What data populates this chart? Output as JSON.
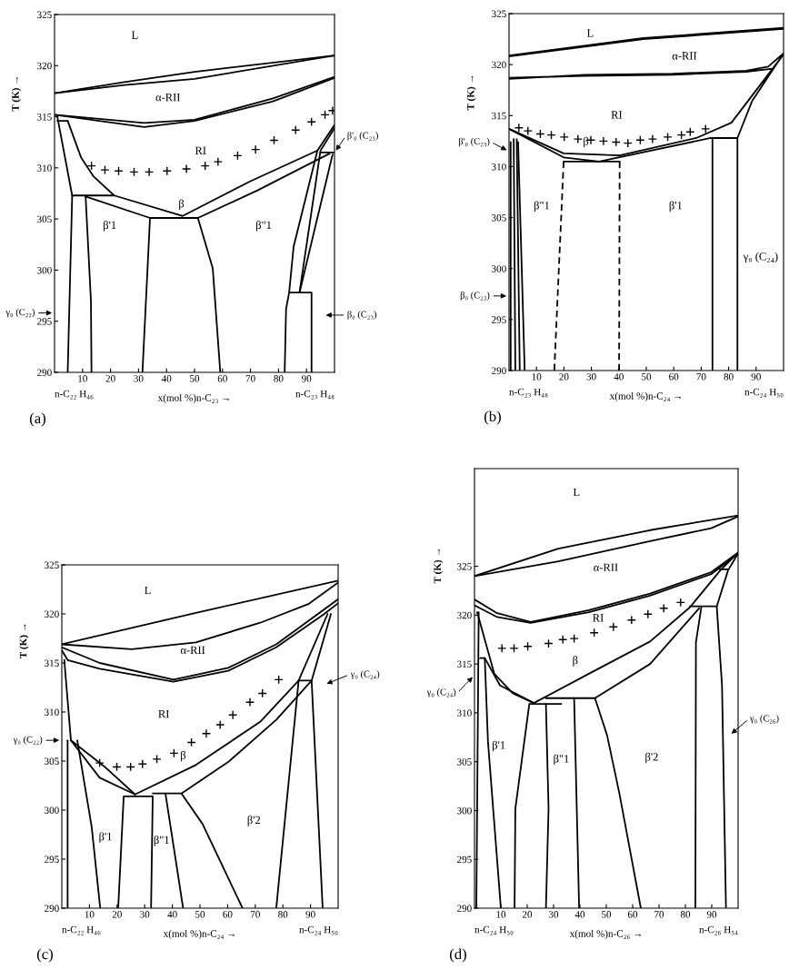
{
  "chart_data": [
    {
      "type": "line",
      "xlabel": "x(mol %)n-C₂₃ →",
      "ylabel": "T (K) →",
      "xlim": [
        0,
        100
      ],
      "xticks": [
        10,
        20,
        30,
        40,
        50,
        60,
        70,
        80,
        90
      ],
      "ylim": [
        290,
        325
      ],
      "yticks": [
        290,
        295,
        300,
        305,
        310,
        315,
        320,
        325
      ],
      "annotations": [
        "n-C₂₂ H₄₆",
        "n-C₂₃ H₄₈",
        "(a)",
        "L",
        "α-RII",
        "RI",
        "β",
        "β'1",
        "β\"1",
        "γ₀ (C₂₂)",
        "β'₀ (C₂₃)",
        "β₀ (C₂₃)"
      ],
      "series": [
        {
          "color": "#000000",
          "x": [
            0,
            25,
            50,
            100
          ],
          "values": [
            317.3,
            318.4,
            319.4,
            321.0
          ]
        },
        {
          "color": "#000000",
          "x": [
            0,
            25,
            50,
            100
          ],
          "values": [
            317.3,
            318.1,
            318.7,
            321.0
          ]
        },
        {
          "color": "#000000",
          "x": [
            0,
            32,
            50,
            78,
            100
          ],
          "values": [
            315.2,
            314.4,
            314.7,
            316.8,
            318.9
          ]
        },
        {
          "color": "#000000",
          "x": [
            0,
            32,
            50,
            78,
            100
          ],
          "values": [
            315.2,
            314.0,
            314.6,
            316.5,
            318.8
          ]
        },
        {
          "color": "#000000",
          "x": [
            1.0,
            6.3,
            4.7
          ],
          "values": [
            315.0,
            307.3,
            290
          ]
        },
        {
          "color": "#000000",
          "x": [
            1.0,
            4.7
          ],
          "values": [
            314.6,
            314.6
          ]
        },
        {
          "color": "#000000",
          "x": [
            4.7,
            9.5,
            13.8,
            21.3,
            45.8,
            70,
            93.9
          ],
          "values": [
            314.6,
            311.0,
            309.2,
            307.3,
            305.3,
            308.7,
            311.7
          ]
        },
        {
          "color": "#000000",
          "x": [
            6.3,
            21.3
          ],
          "values": [
            307.3,
            307.3
          ]
        },
        {
          "color": "#000000",
          "x": [
            11.1,
            34.1,
            51.2,
            72.5,
            98.2
          ],
          "values": [
            307.2,
            305.1,
            305.1,
            307.8,
            311.4
          ]
        },
        {
          "color": "#000000",
          "x": [
            11.1,
            13.0,
            13.2
          ],
          "values": [
            307.2,
            297,
            290
          ]
        },
        {
          "color": "#000000",
          "x": [
            34.1,
            31.4
          ],
          "values": [
            305.1,
            290
          ]
        },
        {
          "color": "#000000",
          "x": [
            51.2,
            56.5,
            59.2
          ],
          "values": [
            305.1,
            300.2,
            290
          ]
        },
        {
          "color": "#000000",
          "x": [
            82.2,
            82.7,
            83.8,
            91.8,
            91.8
          ],
          "values": [
            290,
            296.2,
            297.8,
            297.8,
            290
          ]
        },
        {
          "color": "#000000",
          "x": [
            83.8,
            85.4,
            93.9,
            100
          ],
          "values": [
            297.8,
            302.3,
            311.7,
            314.2
          ]
        },
        {
          "color": "#000000",
          "x": [
            87.5,
            95.0,
            100
          ],
          "values": [
            297.8,
            311.7,
            313.9
          ]
        },
        {
          "color": "#000000",
          "x": [
            87.5,
            99.3
          ],
          "values": [
            297.8,
            311.3
          ]
        },
        {
          "color": "#000000",
          "x": [
            95.0,
            100
          ],
          "values": [
            311.5,
            311.5
          ]
        },
        {
          "type": "scatter",
          "marker": "cross",
          "color": "#000000",
          "x": [
            13.2,
            18.0,
            22.9,
            28.4,
            33.8,
            40.2,
            47.1,
            53.8,
            58.4,
            65.4,
            71.8,
            78.4,
            86.1,
            91.8,
            96.6,
            99.3
          ],
          "values": [
            310.2,
            309.8,
            309.7,
            309.6,
            309.6,
            309.7,
            309.9,
            310.2,
            310.6,
            311.2,
            311.8,
            312.7,
            313.7,
            314.5,
            315.2,
            315.6
          ]
        }
      ]
    },
    {
      "type": "line",
      "xlabel": "x(mol %)n-C₂₄ →",
      "ylabel": "T (K) →",
      "xlim": [
        0,
        100
      ],
      "xticks": [
        10,
        20,
        30,
        40,
        50,
        60,
        70,
        80,
        90
      ],
      "ylim": [
        290,
        325
      ],
      "yticks": [
        290,
        295,
        300,
        305,
        310,
        315,
        320,
        325
      ],
      "annotations": [
        "n-C₂₃ H₄₈",
        "n-C₂₄ H₅₀",
        "(b)",
        "L",
        "α-RII",
        "RI",
        "β",
        "β\"1",
        "β'1",
        "γ₀ (C₂₄)",
        "β'₀ (C₂₃)",
        "β₀ (C₂₃)"
      ],
      "series": [
        {
          "color": "#000000",
          "x": [
            0,
            48.9,
            100
          ],
          "values": [
            320.9,
            322.6,
            323.6
          ]
        },
        {
          "color": "#000000",
          "x": [
            0,
            48.9,
            100
          ],
          "values": [
            320.8,
            322.5,
            323.5
          ]
        },
        {
          "color": "#000000",
          "x": [
            0,
            19.9,
            40.3,
            68.2,
            81,
            100,
            96,
            86.4,
            59.6,
            27.4,
            0,
            0,
            27.4,
            59.6,
            86.4,
            94.4,
            100,
            88.5,
            83.2,
            83.2
          ],
          "values": [
            313.7,
            311.3,
            311.1,
            312.8,
            314.3,
            321.0,
            319.6,
            319.3,
            319.0,
            318.9,
            318.7,
            318.6,
            319.0,
            319.1,
            319.4,
            319.8,
            321.1,
            316.4,
            312.8,
            290
          ]
        },
        {
          "color": "#000000",
          "x": [
            74.1,
            74.1
          ],
          "values": [
            312.8,
            290
          ]
        },
        {
          "color": "#000000",
          "x": [
            0,
            19.9,
            32.8,
            73.5,
            83.2
          ],
          "values": [
            313.7,
            310.9,
            310.5,
            312.8,
            312.8
          ]
        },
        {
          "color": "#000000",
          "x": [
            19.9,
            40.3
          ],
          "values": [
            310.5,
            310.5
          ]
        },
        {
          "color": "#000000",
          "line_style": "dashed",
          "x": [
            19.9,
            16.5
          ],
          "values": [
            310.5,
            290
          ]
        },
        {
          "color": "#000000",
          "line_style": "dashed",
          "x": [
            40.3,
            40.1
          ],
          "values": [
            310.5,
            290
          ]
        },
        {
          "color": "#000000",
          "x": [
            0.6,
            0.6
          ],
          "values": [
            312.4,
            290
          ]
        },
        {
          "color": "#000000",
          "x": [
            1.7,
            2.3
          ],
          "values": [
            312.7,
            290
          ]
        },
        {
          "color": "#000000",
          "x": [
            2.8,
            3.9
          ],
          "values": [
            312.7,
            290
          ]
        },
        {
          "color": "#000000",
          "x": [
            3.3,
            5.7
          ],
          "values": [
            312.4,
            290
          ]
        },
        {
          "type": "scatter",
          "marker": "cross",
          "color": "#000000",
          "x": [
            3.6,
            6.9,
            11.4,
            15.4,
            20.1,
            25.1,
            29.8,
            34.4,
            39.0,
            43.3,
            47.8,
            52.3,
            57.8,
            62.8,
            66.0,
            71.6
          ],
          "values": [
            313.8,
            313.5,
            313.2,
            313.1,
            312.9,
            312.7,
            312.6,
            312.5,
            312.4,
            312.3,
            312.6,
            312.7,
            312.9,
            313.1,
            313.4,
            313.7
          ]
        }
      ]
    },
    {
      "type": "line",
      "xlabel": "x(mol %)n-C₂₄ →",
      "ylabel": "T (K) →",
      "xlim": [
        0,
        100
      ],
      "xticks": [
        10,
        20,
        30,
        40,
        50,
        60,
        70,
        80,
        90
      ],
      "ylim": [
        290,
        325
      ],
      "yticks": [
        290,
        295,
        300,
        305,
        310,
        315,
        320,
        325
      ],
      "annotations": [
        "n-C₂₂ H₄₆",
        "n-C₂₄ H₅₀",
        "(c)",
        "L",
        "α-RII",
        "RI",
        "β",
        "β'1",
        "β\"1",
        "β'2",
        "γ₀ (C₂₂)",
        "γ₀ (C₂₄)"
      ],
      "series": [
        {
          "color": "#000000",
          "x": [
            0,
            48.5,
            100
          ],
          "values": [
            316.9,
            320.1,
            323.4
          ]
        },
        {
          "color": "#000000",
          "x": [
            0,
            25.3,
            48.5,
            71.8,
            89.2,
            100
          ],
          "values": [
            316.9,
            316.4,
            317.1,
            319.1,
            321.0,
            323.2
          ]
        },
        {
          "color": "#000000",
          "x": [
            0,
            13.7,
            40.4,
            60.2,
            77.6,
            100
          ],
          "values": [
            316.6,
            315.0,
            313.3,
            314.5,
            316.9,
            321.5
          ]
        },
        {
          "color": "#000000",
          "x": [
            0,
            2.1,
            13.7,
            40.4,
            60.2,
            77.6,
            95,
            100
          ],
          "values": [
            316.3,
            315.3,
            314.4,
            313.1,
            314.2,
            316.6,
            320.0,
            321.1
          ]
        },
        {
          "color": "#000000",
          "x": [
            0.9,
            3.3
          ],
          "values": [
            315.3,
            307.1
          ]
        },
        {
          "color": "#000000",
          "x": [
            2.1,
            2.1
          ],
          "values": [
            307.1,
            290
          ]
        },
        {
          "color": "#000000",
          "x": [
            3.3,
            13.7,
            26.5
          ],
          "values": [
            307.1,
            303.3,
            301.6
          ]
        },
        {
          "color": "#000000",
          "x": [
            3.3,
            16.0,
            26.5
          ],
          "values": [
            307.1,
            304.3,
            301.6
          ]
        },
        {
          "color": "#000000",
          "x": [
            26.5,
            48.5,
            71.8,
            85.7,
            96.2
          ],
          "values": [
            301.6,
            304.6,
            309.0,
            313.2,
            320.0
          ]
        },
        {
          "color": "#000000",
          "x": [
            43.3,
            60.2,
            77.6,
            90.4,
            97.4
          ],
          "values": [
            301.7,
            304.9,
            309.2,
            313.2,
            320.0
          ]
        },
        {
          "color": "#000000",
          "x": [
            77.6,
            85.7,
            90.4,
            94.4
          ],
          "values": [
            290,
            313.2,
            313.2,
            290
          ]
        },
        {
          "color": "#000000",
          "x": [
            20.4,
            22.4,
            32.9,
            32.3
          ],
          "values": [
            290,
            301.4,
            301.4,
            290
          ]
        },
        {
          "color": "#000000",
          "x": [
            32.9,
            43.3,
            50.9,
            65.4
          ],
          "values": [
            301.7,
            301.7,
            298.6,
            290
          ]
        },
        {
          "color": "#000000",
          "x": [
            5.6,
            10.8,
            13.9
          ],
          "values": [
            307.1,
            298.3,
            290
          ]
        },
        {
          "color": "#000000",
          "x": [
            37.5,
            43.9
          ],
          "values": [
            301.7,
            290
          ]
        },
        {
          "type": "scatter",
          "marker": "cross",
          "color": "#000000",
          "x": [
            13.7,
            19.9,
            24.9,
            29.2,
            34.4,
            40.6,
            46.9,
            52.3,
            57.3,
            61.9,
            68.1,
            72.6,
            78.5
          ],
          "values": [
            304.8,
            304.4,
            304.4,
            304.7,
            305.2,
            305.8,
            306.9,
            307.8,
            308.7,
            309.7,
            311.0,
            311.9,
            313.3
          ]
        }
      ]
    },
    {
      "type": "line",
      "xlabel": "x(mol %)n-C₂₆ →",
      "ylabel": "T (K) →",
      "xlim": [
        0,
        100
      ],
      "xticks": [
        10,
        20,
        30,
        40,
        50,
        60,
        70,
        80,
        90
      ],
      "ylim": [
        290,
        335
      ],
      "yticks": [
        290,
        295,
        300,
        305,
        310,
        315,
        320,
        325
      ],
      "annotations": [
        "n-C₂₄ H₅₀",
        "n-C₂₆ H₅₄",
        "(d)",
        "L",
        "α-RII",
        "RI",
        "β",
        "β'1",
        "β\"1",
        "β'2",
        "γ₀ (C₂₄)",
        "γ₀ (C₂₆)"
      ],
      "series": [
        {
          "color": "#000000",
          "x": [
            0,
            31.8,
            66.6,
            100
          ],
          "values": [
            324.0,
            326.8,
            328.7,
            330.2
          ]
        },
        {
          "color": "#000000",
          "x": [
            0,
            31.8,
            67,
            89.8,
            100
          ],
          "values": [
            324.0,
            325.5,
            327.6,
            328.9,
            330.1
          ]
        },
        {
          "color": "#000000",
          "x": [
            0,
            8.6,
            21.3,
            43.4,
            66.6,
            89.8,
            100
          ],
          "values": [
            321.6,
            320.2,
            319.3,
            320.5,
            322.2,
            324.4,
            326.4
          ]
        },
        {
          "color": "#000000",
          "x": [
            0,
            8.6,
            21.3,
            43.4,
            66.6,
            89.8,
            100
          ],
          "values": [
            321.0,
            319.8,
            319.2,
            320.3,
            322.0,
            324.2,
            326.3
          ]
        },
        {
          "color": "#000000",
          "x": [
            1.0,
            7.5,
            14.5,
            22.5,
            43.4,
            66.6,
            81.7,
            93.3,
            100
          ],
          "values": [
            320.3,
            314.0,
            312.0,
            311.0,
            314.0,
            317.3,
            320.8,
            324.6,
            326.4
          ]
        },
        {
          "color": "#000000",
          "x": [
            100,
            96.2,
            91.9,
            81.7
          ],
          "values": [
            326.3,
            324.6,
            320.9,
            320.9
          ]
        },
        {
          "color": "#000000",
          "x": [
            93.0,
            96.2
          ],
          "values": [
            324.7,
            324.7
          ]
        },
        {
          "color": "#000000",
          "x": [
            3.9,
            9.7,
            22.5
          ],
          "values": [
            315.6,
            312.8,
            311.0
          ]
        },
        {
          "color": "#000000",
          "x": [
            2.1,
            3.9
          ],
          "values": [
            315.6,
            315.6
          ]
        },
        {
          "color": "#000000",
          "x": [
            45.7,
            66.6,
            85.2
          ],
          "values": [
            311.5,
            315.0,
            320.7
          ]
        },
        {
          "color": "#000000",
          "x": [
            15.2,
            15.5,
            20.8,
            32.9
          ],
          "values": [
            290,
            300.2,
            310.9,
            310.9
          ]
        },
        {
          "color": "#000000",
          "x": [
            27.1,
            45.7,
            50.3,
            55,
            63.1
          ],
          "values": [
            311.5,
            311.5,
            307.7,
            301.7,
            290
          ]
        },
        {
          "color": "#000000",
          "x": [
            1.6,
            0.7
          ],
          "values": [
            320.3,
            290
          ]
        },
        {
          "color": "#000000",
          "x": [
            3.9,
            5.1,
            10.0
          ],
          "values": [
            315.6,
            307.1,
            290
          ]
        },
        {
          "color": "#000000",
          "x": [
            27.1,
            28.1,
            27.1
          ],
          "values": [
            310.9,
            300.2,
            290
          ]
        },
        {
          "color": "#000000",
          "x": [
            37.8,
            39.7
          ],
          "values": [
            311.5,
            290
          ]
        },
        {
          "color": "#000000",
          "x": [
            86.1,
            84,
            83.8
          ],
          "values": [
            320.9,
            317.2,
            290
          ]
        },
        {
          "color": "#000000",
          "x": [
            91.9,
            93.9,
            95.4
          ],
          "values": [
            320.9,
            312.8,
            290
          ]
        },
        {
          "type": "scatter",
          "marker": "cross",
          "color": "#000000",
          "x": [
            10.4,
            15.0,
            20.2,
            28.1,
            33.5,
            37.8,
            45.4,
            52.7,
            59.6,
            65.8,
            71.8,
            78.2
          ],
          "values": [
            316.6,
            316.6,
            316.8,
            317.1,
            317.5,
            317.6,
            318.2,
            318.8,
            319.5,
            320.1,
            320.7,
            321.3
          ]
        }
      ]
    }
  ]
}
